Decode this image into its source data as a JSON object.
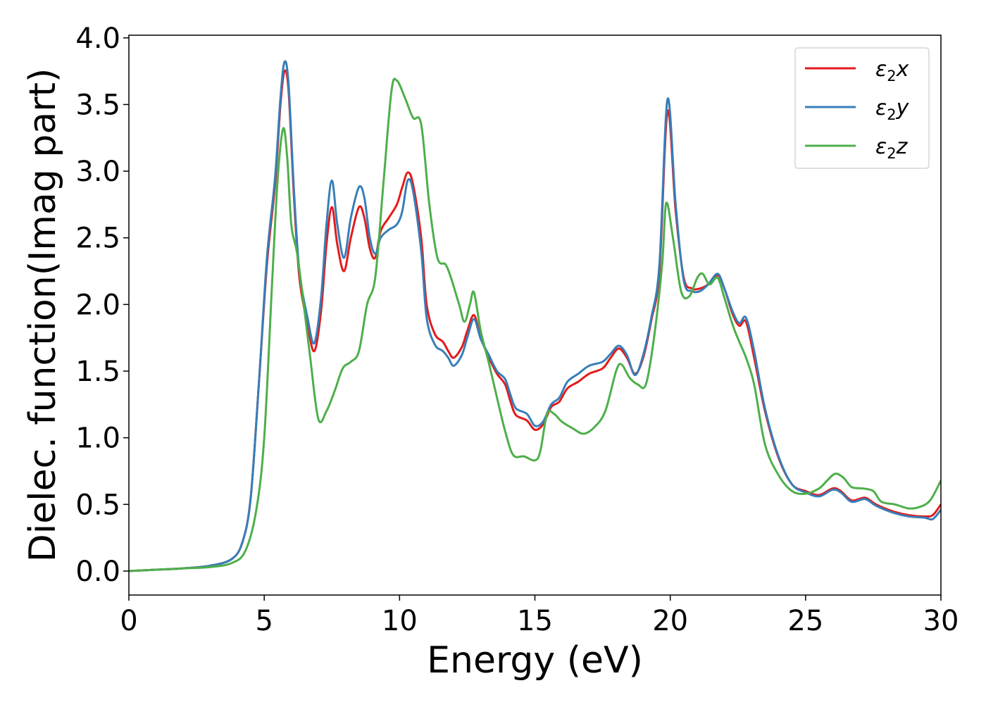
{
  "chart_data": {
    "type": "line",
    "title": "",
    "xlabel": "Energy (eV)",
    "ylabel": "Dielec. function(Imag part)",
    "xlim": [
      0,
      30
    ],
    "ylim": [
      -0.18,
      4.02
    ],
    "xticks": [
      0,
      5,
      10,
      15,
      20,
      25,
      30
    ],
    "xtick_labels": [
      "0",
      "5",
      "10",
      "15",
      "20",
      "25",
      "30"
    ],
    "yticks": [
      0.0,
      0.5,
      1.0,
      1.5,
      2.0,
      2.5,
      3.0,
      3.5,
      4.0
    ],
    "ytick_labels": [
      "0.0",
      "0.5",
      "1.0",
      "1.5",
      "2.0",
      "2.5",
      "3.0",
      "3.5",
      "4.0"
    ],
    "grid": false,
    "legend_position": "top-right",
    "series": [
      {
        "name": "ε₂x",
        "legend_base": "ε",
        "legend_sub": "2",
        "legend_suffix": "x",
        "color": "#e41a1c",
        "points": [
          [
            0,
            0.0
          ],
          [
            1,
            0.01
          ],
          [
            2,
            0.02
          ],
          [
            3,
            0.04
          ],
          [
            3.8,
            0.09
          ],
          [
            4.2,
            0.22
          ],
          [
            4.5,
            0.55
          ],
          [
            4.8,
            1.4
          ],
          [
            5.1,
            2.3
          ],
          [
            5.4,
            2.9
          ],
          [
            5.6,
            3.5
          ],
          [
            5.75,
            3.75
          ],
          [
            5.9,
            3.6
          ],
          [
            6.1,
            2.8
          ],
          [
            6.3,
            2.2
          ],
          [
            6.6,
            1.85
          ],
          [
            6.85,
            1.65
          ],
          [
            7.1,
            1.95
          ],
          [
            7.3,
            2.45
          ],
          [
            7.5,
            2.73
          ],
          [
            7.7,
            2.45
          ],
          [
            7.95,
            2.25
          ],
          [
            8.2,
            2.5
          ],
          [
            8.5,
            2.73
          ],
          [
            8.7,
            2.65
          ],
          [
            8.9,
            2.42
          ],
          [
            9.1,
            2.35
          ],
          [
            9.3,
            2.55
          ],
          [
            9.6,
            2.65
          ],
          [
            9.9,
            2.75
          ],
          [
            10.1,
            2.88
          ],
          [
            10.3,
            2.99
          ],
          [
            10.5,
            2.9
          ],
          [
            10.8,
            2.5
          ],
          [
            11.0,
            2.0
          ],
          [
            11.3,
            1.78
          ],
          [
            11.6,
            1.72
          ],
          [
            11.8,
            1.65
          ],
          [
            12.0,
            1.6
          ],
          [
            12.3,
            1.68
          ],
          [
            12.5,
            1.8
          ],
          [
            12.75,
            1.92
          ],
          [
            13.0,
            1.75
          ],
          [
            13.3,
            1.6
          ],
          [
            13.6,
            1.48
          ],
          [
            13.9,
            1.4
          ],
          [
            14.1,
            1.27
          ],
          [
            14.3,
            1.17
          ],
          [
            14.7,
            1.13
          ],
          [
            15.0,
            1.06
          ],
          [
            15.3,
            1.1
          ],
          [
            15.6,
            1.23
          ],
          [
            15.9,
            1.27
          ],
          [
            16.2,
            1.37
          ],
          [
            16.6,
            1.42
          ],
          [
            17.0,
            1.48
          ],
          [
            17.5,
            1.52
          ],
          [
            17.8,
            1.6
          ],
          [
            18.1,
            1.67
          ],
          [
            18.4,
            1.6
          ],
          [
            18.7,
            1.48
          ],
          [
            19.0,
            1.6
          ],
          [
            19.3,
            1.88
          ],
          [
            19.6,
            2.25
          ],
          [
            19.9,
            3.45
          ],
          [
            20.2,
            2.7
          ],
          [
            20.5,
            2.2
          ],
          [
            20.8,
            2.12
          ],
          [
            21.1,
            2.12
          ],
          [
            21.4,
            2.15
          ],
          [
            21.75,
            2.22
          ],
          [
            22.0,
            2.12
          ],
          [
            22.3,
            1.93
          ],
          [
            22.55,
            1.84
          ],
          [
            22.8,
            1.87
          ],
          [
            23.1,
            1.6
          ],
          [
            23.5,
            1.2
          ],
          [
            24.0,
            0.85
          ],
          [
            24.5,
            0.65
          ],
          [
            25.0,
            0.6
          ],
          [
            25.5,
            0.57
          ],
          [
            26.0,
            0.62
          ],
          [
            26.3,
            0.6
          ],
          [
            26.7,
            0.53
          ],
          [
            27.2,
            0.55
          ],
          [
            27.6,
            0.5
          ],
          [
            28.2,
            0.45
          ],
          [
            28.8,
            0.42
          ],
          [
            29.4,
            0.41
          ],
          [
            29.7,
            0.42
          ],
          [
            30.0,
            0.5
          ]
        ]
      },
      {
        "name": "ε₂y",
        "legend_base": "ε",
        "legend_sub": "2",
        "legend_suffix": "y",
        "color": "#377eb8",
        "points": [
          [
            0,
            0.0
          ],
          [
            1,
            0.01
          ],
          [
            2,
            0.02
          ],
          [
            3,
            0.04
          ],
          [
            3.8,
            0.09
          ],
          [
            4.2,
            0.22
          ],
          [
            4.5,
            0.55
          ],
          [
            4.8,
            1.4
          ],
          [
            5.1,
            2.35
          ],
          [
            5.4,
            2.95
          ],
          [
            5.6,
            3.55
          ],
          [
            5.75,
            3.82
          ],
          [
            5.9,
            3.65
          ],
          [
            6.1,
            2.85
          ],
          [
            6.3,
            2.25
          ],
          [
            6.6,
            1.9
          ],
          [
            6.85,
            1.71
          ],
          [
            7.1,
            2.05
          ],
          [
            7.3,
            2.6
          ],
          [
            7.5,
            2.93
          ],
          [
            7.7,
            2.6
          ],
          [
            7.95,
            2.35
          ],
          [
            8.2,
            2.65
          ],
          [
            8.5,
            2.88
          ],
          [
            8.7,
            2.8
          ],
          [
            8.9,
            2.5
          ],
          [
            9.1,
            2.38
          ],
          [
            9.3,
            2.5
          ],
          [
            9.6,
            2.56
          ],
          [
            9.9,
            2.6
          ],
          [
            10.1,
            2.7
          ],
          [
            10.3,
            2.93
          ],
          [
            10.5,
            2.85
          ],
          [
            10.8,
            2.4
          ],
          [
            11.0,
            1.9
          ],
          [
            11.3,
            1.7
          ],
          [
            11.6,
            1.65
          ],
          [
            11.8,
            1.6
          ],
          [
            12.0,
            1.54
          ],
          [
            12.3,
            1.62
          ],
          [
            12.5,
            1.75
          ],
          [
            12.75,
            1.89
          ],
          [
            13.0,
            1.74
          ],
          [
            13.3,
            1.62
          ],
          [
            13.6,
            1.5
          ],
          [
            13.9,
            1.44
          ],
          [
            14.1,
            1.32
          ],
          [
            14.3,
            1.22
          ],
          [
            14.7,
            1.18
          ],
          [
            15.0,
            1.09
          ],
          [
            15.3,
            1.12
          ],
          [
            15.6,
            1.25
          ],
          [
            15.9,
            1.3
          ],
          [
            16.2,
            1.42
          ],
          [
            16.6,
            1.48
          ],
          [
            17.0,
            1.54
          ],
          [
            17.5,
            1.57
          ],
          [
            17.8,
            1.63
          ],
          [
            18.1,
            1.69
          ],
          [
            18.4,
            1.62
          ],
          [
            18.7,
            1.47
          ],
          [
            19.0,
            1.62
          ],
          [
            19.3,
            1.9
          ],
          [
            19.6,
            2.3
          ],
          [
            19.9,
            3.54
          ],
          [
            20.2,
            2.75
          ],
          [
            20.5,
            2.18
          ],
          [
            20.8,
            2.1
          ],
          [
            21.1,
            2.1
          ],
          [
            21.4,
            2.15
          ],
          [
            21.75,
            2.23
          ],
          [
            22.0,
            2.12
          ],
          [
            22.3,
            1.95
          ],
          [
            22.55,
            1.86
          ],
          [
            22.8,
            1.9
          ],
          [
            23.1,
            1.65
          ],
          [
            23.5,
            1.22
          ],
          [
            24.0,
            0.86
          ],
          [
            24.5,
            0.65
          ],
          [
            25.0,
            0.59
          ],
          [
            25.5,
            0.56
          ],
          [
            26.0,
            0.61
          ],
          [
            26.3,
            0.59
          ],
          [
            26.7,
            0.52
          ],
          [
            27.2,
            0.54
          ],
          [
            27.6,
            0.49
          ],
          [
            28.2,
            0.44
          ],
          [
            28.8,
            0.41
          ],
          [
            29.4,
            0.4
          ],
          [
            29.7,
            0.39
          ],
          [
            30.0,
            0.46
          ]
        ]
      },
      {
        "name": "ε₂z",
        "legend_base": "ε",
        "legend_sub": "2",
        "legend_suffix": "z",
        "color": "#4daf4a",
        "points": [
          [
            0,
            0.0
          ],
          [
            1,
            0.01
          ],
          [
            2,
            0.02
          ],
          [
            3,
            0.03
          ],
          [
            3.8,
            0.06
          ],
          [
            4.3,
            0.15
          ],
          [
            4.7,
            0.45
          ],
          [
            5.0,
            1.0
          ],
          [
            5.3,
            2.2
          ],
          [
            5.5,
            2.95
          ],
          [
            5.7,
            3.32
          ],
          [
            5.85,
            3.1
          ],
          [
            6.0,
            2.6
          ],
          [
            6.2,
            2.4
          ],
          [
            6.4,
            2.1
          ],
          [
            6.7,
            1.6
          ],
          [
            7.0,
            1.14
          ],
          [
            7.3,
            1.2
          ],
          [
            7.6,
            1.35
          ],
          [
            7.9,
            1.52
          ],
          [
            8.2,
            1.57
          ],
          [
            8.5,
            1.65
          ],
          [
            8.8,
            2.0
          ],
          [
            9.1,
            2.2
          ],
          [
            9.4,
            2.9
          ],
          [
            9.7,
            3.6
          ],
          [
            9.9,
            3.68
          ],
          [
            10.2,
            3.55
          ],
          [
            10.5,
            3.4
          ],
          [
            10.8,
            3.35
          ],
          [
            11.1,
            2.75
          ],
          [
            11.4,
            2.35
          ],
          [
            11.7,
            2.3
          ],
          [
            11.9,
            2.2
          ],
          [
            12.2,
            2.0
          ],
          [
            12.4,
            1.87
          ],
          [
            12.6,
            2.0
          ],
          [
            12.75,
            2.09
          ],
          [
            13.0,
            1.8
          ],
          [
            13.3,
            1.56
          ],
          [
            13.6,
            1.3
          ],
          [
            13.9,
            1.05
          ],
          [
            14.2,
            0.87
          ],
          [
            14.6,
            0.86
          ],
          [
            15.0,
            0.83
          ],
          [
            15.2,
            0.9
          ],
          [
            15.45,
            1.18
          ],
          [
            15.7,
            1.18
          ],
          [
            16.0,
            1.12
          ],
          [
            16.4,
            1.07
          ],
          [
            16.8,
            1.03
          ],
          [
            17.2,
            1.08
          ],
          [
            17.6,
            1.2
          ],
          [
            18.0,
            1.5
          ],
          [
            18.2,
            1.55
          ],
          [
            18.5,
            1.45
          ],
          [
            18.8,
            1.4
          ],
          [
            19.1,
            1.4
          ],
          [
            19.4,
            1.75
          ],
          [
            19.7,
            2.3
          ],
          [
            19.85,
            2.76
          ],
          [
            20.1,
            2.5
          ],
          [
            20.4,
            2.1
          ],
          [
            20.7,
            2.06
          ],
          [
            21.0,
            2.2
          ],
          [
            21.2,
            2.23
          ],
          [
            21.45,
            2.15
          ],
          [
            21.75,
            2.2
          ],
          [
            22.0,
            2.05
          ],
          [
            22.3,
            1.85
          ],
          [
            22.55,
            1.72
          ],
          [
            22.8,
            1.6
          ],
          [
            23.1,
            1.4
          ],
          [
            23.5,
            0.95
          ],
          [
            24.0,
            0.72
          ],
          [
            24.5,
            0.6
          ],
          [
            25.0,
            0.58
          ],
          [
            25.5,
            0.62
          ],
          [
            25.8,
            0.68
          ],
          [
            26.1,
            0.73
          ],
          [
            26.4,
            0.7
          ],
          [
            26.7,
            0.63
          ],
          [
            27.1,
            0.62
          ],
          [
            27.5,
            0.6
          ],
          [
            27.8,
            0.52
          ],
          [
            28.3,
            0.5
          ],
          [
            28.8,
            0.47
          ],
          [
            29.2,
            0.48
          ],
          [
            29.6,
            0.53
          ],
          [
            30.0,
            0.68
          ]
        ]
      }
    ]
  }
}
